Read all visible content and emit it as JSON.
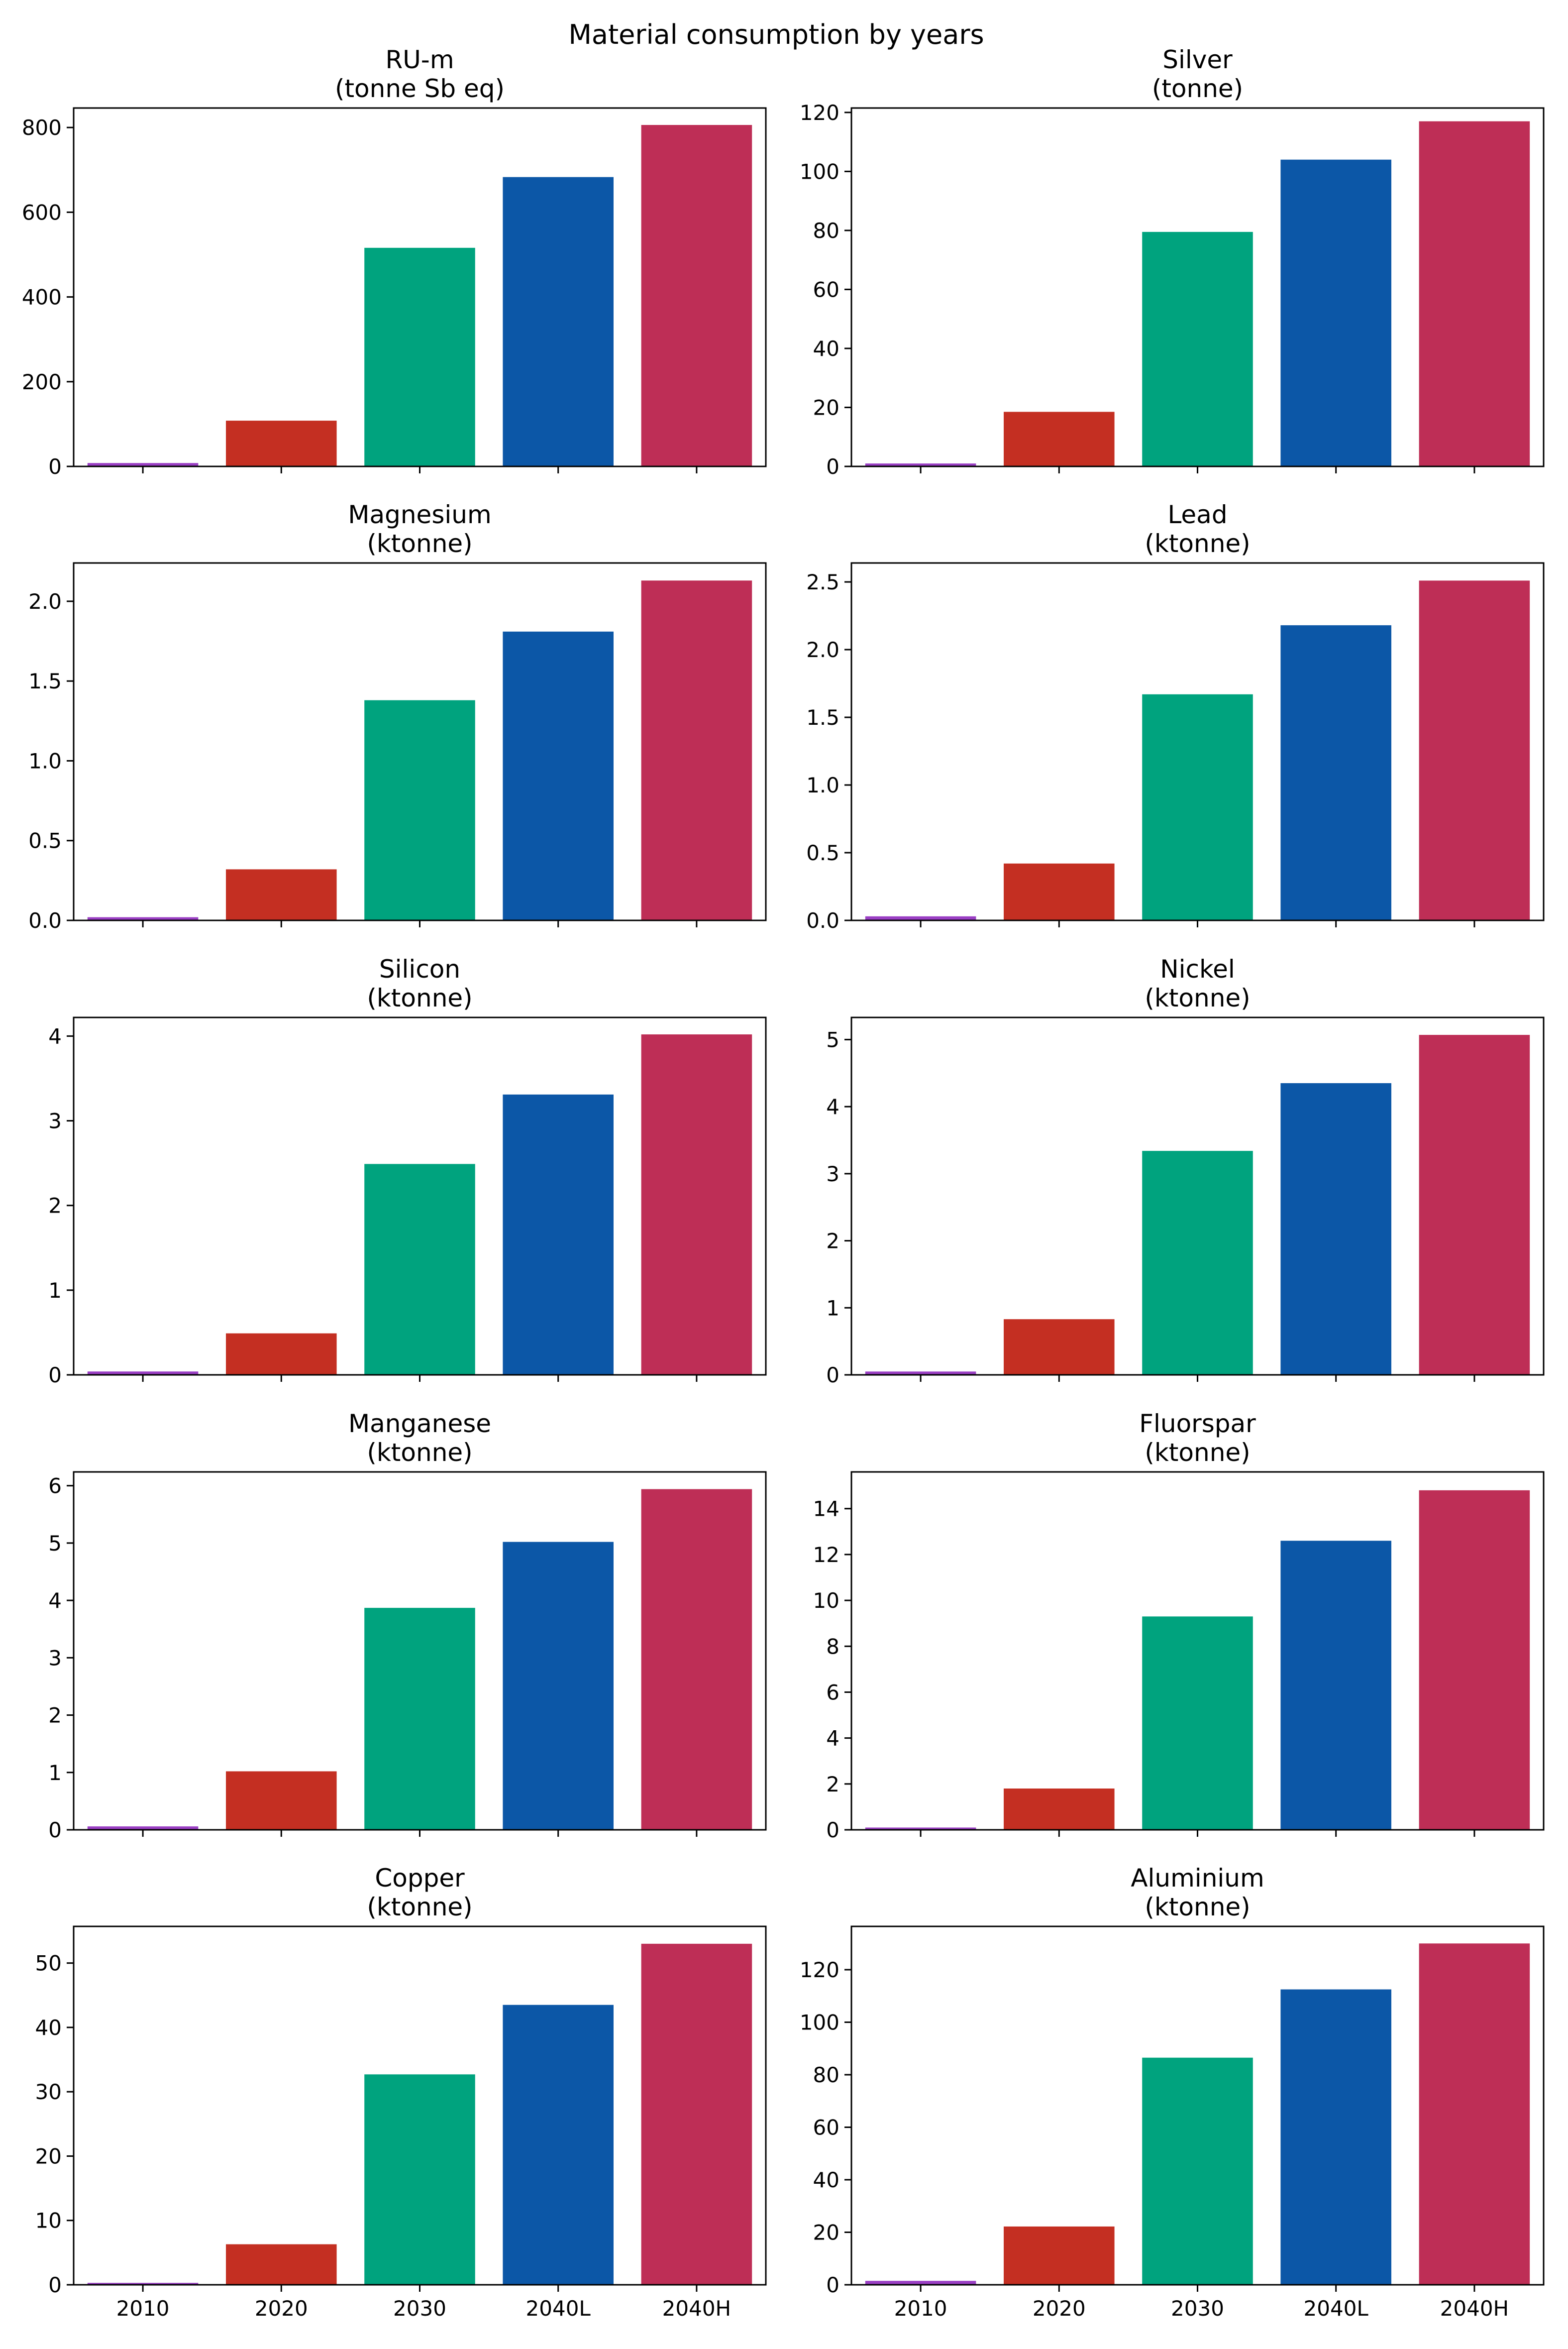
{
  "figure_title": "Material consumption by years",
  "colors": [
    "#9a3fc4",
    "#c42f22",
    "#00a37e",
    "#0c57a7",
    "#be2e56"
  ],
  "chart_data": [
    {
      "type": "bar",
      "title_line1": "RU-m",
      "title_line2": "(tonne Sb eq)",
      "categories": [
        "2010",
        "2020",
        "2030",
        "2040L",
        "2040H"
      ],
      "values": [
        8,
        108,
        516,
        683,
        806
      ],
      "ylim": [
        0,
        846
      ],
      "yticks": [
        0,
        200,
        400,
        600,
        800
      ],
      "ytick_labels": [
        "0",
        "200",
        "400",
        "600",
        "800"
      ]
    },
    {
      "type": "bar",
      "title_line1": "Silver",
      "title_line2": "(tonne)",
      "categories": [
        "2010",
        "2020",
        "2030",
        "2040L",
        "2040H"
      ],
      "values": [
        1,
        18.5,
        79.5,
        104,
        117
      ],
      "ylim": [
        0,
        121.5
      ],
      "yticks": [
        0,
        20,
        40,
        60,
        80,
        100,
        120
      ],
      "ytick_labels": [
        "0",
        "20",
        "40",
        "60",
        "80",
        "100",
        "120"
      ]
    },
    {
      "type": "bar",
      "title_line1": "Magnesium",
      "title_line2": "(ktonne)",
      "categories": [
        "2010",
        "2020",
        "2030",
        "2040L",
        "2040H"
      ],
      "values": [
        0.02,
        0.32,
        1.38,
        1.81,
        2.13
      ],
      "ylim": [
        0,
        2.24
      ],
      "yticks": [
        0,
        0.5,
        1.0,
        1.5,
        2.0
      ],
      "ytick_labels": [
        "0.0",
        "0.5",
        "1.0",
        "1.5",
        "2.0"
      ]
    },
    {
      "type": "bar",
      "title_line1": "Lead",
      "title_line2": "(ktonne)",
      "categories": [
        "2010",
        "2020",
        "2030",
        "2040L",
        "2040H"
      ],
      "values": [
        0.03,
        0.42,
        1.67,
        2.18,
        2.51
      ],
      "ylim": [
        0,
        2.64
      ],
      "yticks": [
        0,
        0.5,
        1.0,
        1.5,
        2.0,
        2.5
      ],
      "ytick_labels": [
        "0.0",
        "0.5",
        "1.0",
        "1.5",
        "2.0",
        "2.5"
      ]
    },
    {
      "type": "bar",
      "title_line1": "Silicon",
      "title_line2": "(ktonne)",
      "categories": [
        "2010",
        "2020",
        "2030",
        "2040L",
        "2040H"
      ],
      "values": [
        0.04,
        0.49,
        2.49,
        3.31,
        4.02
      ],
      "ylim": [
        0,
        4.22
      ],
      "yticks": [
        0,
        1,
        2,
        3,
        4
      ],
      "ytick_labels": [
        "0",
        "1",
        "2",
        "3",
        "4"
      ]
    },
    {
      "type": "bar",
      "title_line1": "Nickel",
      "title_line2": "(ktonne)",
      "categories": [
        "2010",
        "2020",
        "2030",
        "2040L",
        "2040H"
      ],
      "values": [
        0.05,
        0.83,
        3.34,
        4.35,
        5.07
      ],
      "ylim": [
        0,
        5.33
      ],
      "yticks": [
        0,
        1,
        2,
        3,
        4,
        5
      ],
      "ytick_labels": [
        "0",
        "1",
        "2",
        "3",
        "4",
        "5"
      ]
    },
    {
      "type": "bar",
      "title_line1": "Manganese",
      "title_line2": "(ktonne)",
      "categories": [
        "2010",
        "2020",
        "2030",
        "2040L",
        "2040H"
      ],
      "values": [
        0.06,
        1.02,
        3.87,
        5.02,
        5.94
      ],
      "ylim": [
        0,
        6.24
      ],
      "yticks": [
        0,
        1,
        2,
        3,
        4,
        5,
        6
      ],
      "ytick_labels": [
        "0",
        "1",
        "2",
        "3",
        "4",
        "5",
        "6"
      ]
    },
    {
      "type": "bar",
      "title_line1": "Fluorspar",
      "title_line2": "(ktonne)",
      "categories": [
        "2010",
        "2020",
        "2030",
        "2040L",
        "2040H"
      ],
      "values": [
        0.1,
        1.8,
        9.3,
        12.6,
        14.8
      ],
      "ylim": [
        0,
        15.6
      ],
      "yticks": [
        0,
        2,
        4,
        6,
        8,
        10,
        12,
        14
      ],
      "ytick_labels": [
        "0",
        "2",
        "4",
        "6",
        "8",
        "10",
        "12",
        "14"
      ]
    },
    {
      "type": "bar",
      "title_line1": "Copper",
      "title_line2": "(ktonne)",
      "categories": [
        "2010",
        "2020",
        "2030",
        "2040L",
        "2040H"
      ],
      "values": [
        0.3,
        6.3,
        32.7,
        43.5,
        53
      ],
      "ylim": [
        0,
        55.7
      ],
      "yticks": [
        0,
        10,
        20,
        30,
        40,
        50
      ],
      "ytick_labels": [
        "0",
        "10",
        "20",
        "30",
        "40",
        "50"
      ]
    },
    {
      "type": "bar",
      "title_line1": "Aluminium",
      "title_line2": "(ktonne)",
      "categories": [
        "2010",
        "2020",
        "2030",
        "2040L",
        "2040H"
      ],
      "values": [
        1.5,
        22.2,
        86.5,
        112.5,
        130
      ],
      "ylim": [
        0,
        136.5
      ],
      "yticks": [
        0,
        20,
        40,
        60,
        80,
        100,
        120
      ],
      "ytick_labels": [
        "0",
        "20",
        "40",
        "60",
        "80",
        "100",
        "120"
      ]
    }
  ]
}
